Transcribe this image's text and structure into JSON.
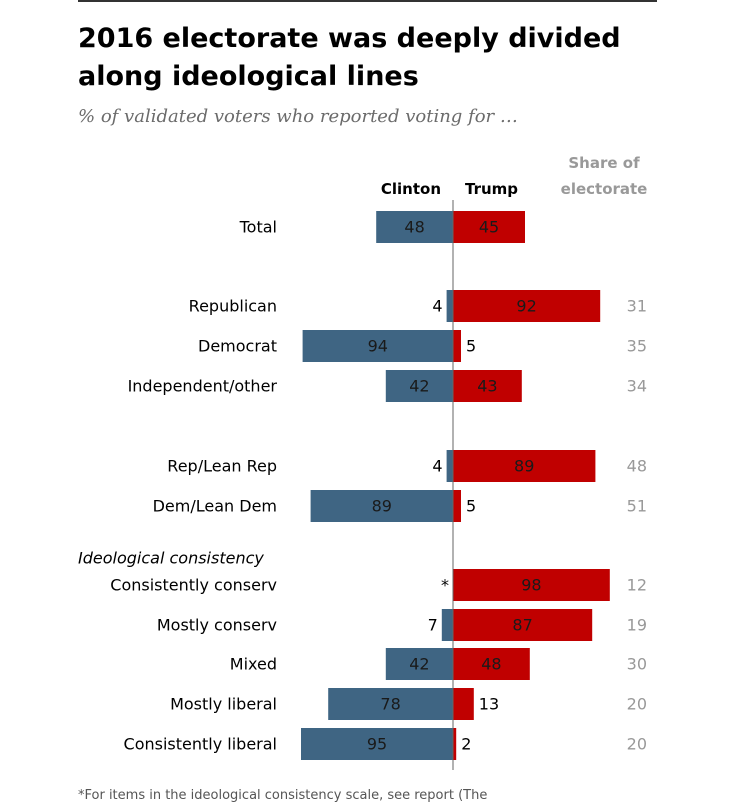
{
  "title": "2016 electorate was deeply divided along ideological lines",
  "subtitle": "% of validated voters who reported voting for …",
  "footnote": "*For items in the ideological consistency scale, see report (The",
  "colors": {
    "clinton": "#3f6583",
    "trump": "#c00000",
    "axis": "#666666",
    "share": "#999999"
  },
  "chart_data": {
    "type": "bar",
    "orientation": "diverging-horizontal",
    "headers": {
      "clinton": "Clinton",
      "trump": "Trump",
      "share_line1": "Share of",
      "share_line2": "electorate"
    },
    "section_labels": [
      {
        "label": "Ideological consistency",
        "before_index": 7
      }
    ],
    "categories": [
      "Total",
      "Republican",
      "Democrat",
      "Independent/other",
      "Rep/Lean Rep",
      "Dem/Lean Dem",
      "Consistently conserv",
      "Mostly conserv",
      "Mixed",
      "Mostly liberal",
      "Consistently liberal"
    ],
    "series": [
      {
        "name": "Clinton",
        "values": [
          48,
          4,
          94,
          42,
          4,
          89,
          0,
          7,
          42,
          78,
          95
        ],
        "labels": [
          "48",
          "4",
          "94",
          "42",
          "4",
          "89",
          "*",
          "7",
          "42",
          "78",
          "95"
        ]
      },
      {
        "name": "Trump",
        "values": [
          45,
          92,
          5,
          43,
          89,
          5,
          98,
          87,
          48,
          13,
          2
        ],
        "labels": [
          "45",
          "92",
          "5",
          "43",
          "89",
          "5",
          "98",
          "87",
          "48",
          "13",
          "2"
        ]
      }
    ],
    "share_of_electorate": [
      "",
      "31",
      "35",
      "34",
      "48",
      "51",
      "12",
      "19",
      "30",
      "20",
      "20"
    ],
    "xlim": [
      0,
      100
    ]
  }
}
